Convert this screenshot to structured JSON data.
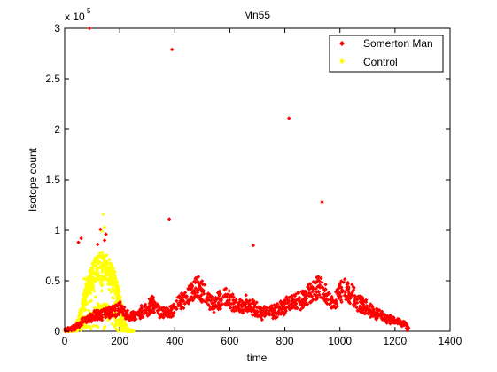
{
  "chart_data": {
    "type": "scatter",
    "title": "Mn55",
    "xlabel": "time",
    "ylabel": "Isotope count",
    "y_exponent_label": "x 10",
    "y_exponent": "5",
    "xlim": [
      0,
      1400
    ],
    "ylim": [
      0,
      300000
    ],
    "x_ticks": [
      0,
      200,
      400,
      600,
      800,
      1000,
      1200,
      1400
    ],
    "y_ticks": [
      0,
      50000,
      100000,
      150000,
      200000,
      250000,
      300000
    ],
    "y_tick_labels": [
      "0",
      "0.5",
      "1",
      "1.5",
      "2",
      "2.5",
      "3"
    ],
    "grid": false,
    "legend_position": "top-right",
    "series": [
      {
        "name": "Somerton Man",
        "color": "#ff0000",
        "marker": "diamond",
        "outliers": [
          [
            90,
            300000
          ],
          [
            390,
            279000
          ],
          [
            815,
            211000
          ],
          [
            380,
            111000
          ],
          [
            935,
            128000
          ],
          [
            685,
            85000
          ],
          [
            60,
            92000
          ],
          [
            50,
            88000
          ],
          [
            130,
            101000
          ],
          [
            150,
            96000
          ],
          [
            145,
            90000
          ],
          [
            120,
            86000
          ]
        ],
        "trend": [
          [
            0,
            1000
          ],
          [
            40,
            4000
          ],
          [
            60,
            9000
          ],
          [
            80,
            12000
          ],
          [
            100,
            14000
          ],
          [
            120,
            16000
          ],
          [
            150,
            18000
          ],
          [
            180,
            20000
          ],
          [
            200,
            22000
          ],
          [
            220,
            17000
          ],
          [
            240,
            14000
          ],
          [
            260,
            16000
          ],
          [
            280,
            19000
          ],
          [
            300,
            22000
          ],
          [
            320,
            27000
          ],
          [
            340,
            21000
          ],
          [
            360,
            17000
          ],
          [
            380,
            19000
          ],
          [
            400,
            24000
          ],
          [
            420,
            29000
          ],
          [
            440,
            33000
          ],
          [
            460,
            38000
          ],
          [
            480,
            44000
          ],
          [
            500,
            39000
          ],
          [
            520,
            32000
          ],
          [
            540,
            26000
          ],
          [
            560,
            30000
          ],
          [
            580,
            34000
          ],
          [
            600,
            31000
          ],
          [
            620,
            27000
          ],
          [
            640,
            25000
          ],
          [
            660,
            27000
          ],
          [
            680,
            24000
          ],
          [
            700,
            21000
          ],
          [
            720,
            18000
          ],
          [
            740,
            21000
          ],
          [
            760,
            19000
          ],
          [
            780,
            22000
          ],
          [
            800,
            25000
          ],
          [
            820,
            27000
          ],
          [
            840,
            29000
          ],
          [
            860,
            31000
          ],
          [
            880,
            35000
          ],
          [
            900,
            40000
          ],
          [
            920,
            46000
          ],
          [
            940,
            40000
          ],
          [
            960,
            33000
          ],
          [
            980,
            30000
          ],
          [
            1000,
            38000
          ],
          [
            1020,
            42000
          ],
          [
            1040,
            37000
          ],
          [
            1060,
            30000
          ],
          [
            1080,
            26000
          ],
          [
            1100,
            23000
          ],
          [
            1120,
            20000
          ],
          [
            1140,
            17000
          ],
          [
            1160,
            14000
          ],
          [
            1180,
            12000
          ],
          [
            1200,
            10000
          ],
          [
            1220,
            8000
          ],
          [
            1240,
            6000
          ],
          [
            1250,
            1000
          ]
        ],
        "x_range": [
          0,
          1250
        ]
      },
      {
        "name": "Control",
        "color": "#ffff00",
        "marker": "diamond",
        "outliers": [
          [
            140,
            116000
          ],
          [
            145,
            103000
          ],
          [
            135,
            99000
          ],
          [
            70,
            52000
          ]
        ],
        "upper_envelope": [
          [
            0,
            1500
          ],
          [
            40,
            6000
          ],
          [
            60,
            25000
          ],
          [
            80,
            52000
          ],
          [
            100,
            68000
          ],
          [
            120,
            77000
          ],
          [
            140,
            79000
          ],
          [
            160,
            74000
          ],
          [
            180,
            62000
          ],
          [
            200,
            38000
          ],
          [
            215,
            12000
          ],
          [
            230,
            2000
          ],
          [
            250,
            500
          ]
        ],
        "lower_envelope": [
          [
            60,
            6000
          ],
          [
            80,
            12000
          ],
          [
            100,
            15000
          ],
          [
            120,
            20000
          ],
          [
            140,
            24000
          ],
          [
            160,
            22000
          ],
          [
            180,
            16000
          ],
          [
            200,
            8000
          ]
        ],
        "x_range": [
          0,
          250
        ]
      }
    ]
  }
}
